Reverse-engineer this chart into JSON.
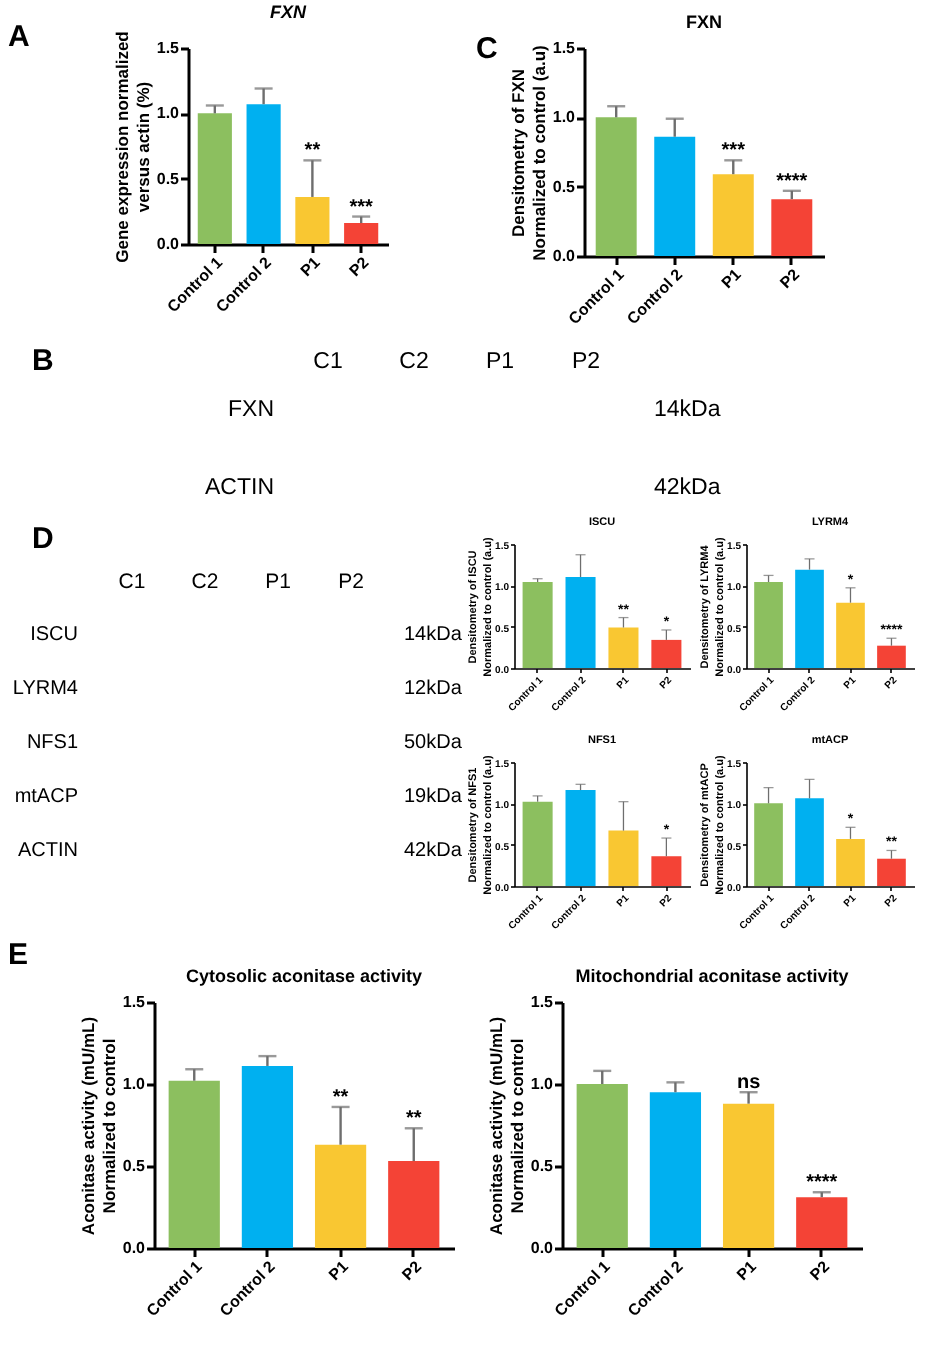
{
  "chart_data": [
    {
      "type": "bar",
      "title": "FXN",
      "ylabel": "Gene expression normalized\nversus actin (%)",
      "categories": [
        "Control 1",
        "Control 2",
        "P1",
        "P2"
      ],
      "values": [
        1.0,
        1.07,
        0.36,
        0.16
      ],
      "colors": [
        "#8cbf5f",
        "#00b0f0",
        "#f9c732",
        "#f44336"
      ],
      "errors": [
        [
          1.0,
          1.06
        ],
        [
          1.07,
          1.19
        ],
        [
          0.36,
          0.64
        ],
        [
          0.16,
          0.21
        ]
      ],
      "ylim": [
        0,
        1.5
      ],
      "yticks": [
        {
          "value": 0,
          "label": "0.0"
        },
        {
          "value": 0.5,
          "label": "0.5"
        },
        {
          "value": 1,
          "label": "1.0"
        },
        {
          "value": 1.5,
          "label": "1.5"
        }
      ],
      "annotations": [
        "A",
        {
          "text": "**",
          "x": "P1",
          "y": 0.64
        },
        {
          "text": "***",
          "x": "P2",
          "y": 0.21
        }
      ]
    },
    {
      "type": "bar",
      "title": "FXN",
      "ylabel": "Densitometry of FXN\nNormalized to control (a.u)",
      "categories": [
        "Control 1",
        "Control 2",
        "P1",
        "P2"
      ],
      "values": [
        1.0,
        0.86,
        0.59,
        0.41
      ],
      "colors": [
        "#8cbf5f",
        "#00b0f0",
        "#f9c732",
        "#f44336"
      ],
      "errors": [
        [
          1.0,
          1.08
        ],
        [
          0.86,
          0.99
        ],
        [
          0.59,
          0.69
        ],
        [
          0.41,
          0.47
        ]
      ],
      "ylim": [
        0,
        1.5
      ],
      "yticks": [
        {
          "value": 0,
          "label": "0.0"
        },
        {
          "value": 0.5,
          "label": "0.5"
        },
        {
          "value": 1,
          "label": "1.0"
        },
        {
          "value": 1.5,
          "label": "1.5"
        }
      ],
      "annotations": [
        "C",
        {
          "text": "***",
          "x": "P1",
          "y": 0.69
        },
        {
          "text": "****",
          "x": "P2",
          "y": 0.47
        }
      ]
    },
    {
      "type": "other",
      "annotations": [
        "B"
      ],
      "categories": [
        "C1",
        "C2",
        "P1",
        "P2"
      ],
      "y_categories": [
        "FXN",
        "ACTIN"
      ],
      "y2_categories": [
        "14kDa",
        "42kDa"
      ]
    },
    {
      "type": "other",
      "annotations": [
        "D"
      ],
      "categories": [
        "C1",
        "C2",
        "P1",
        "P2"
      ],
      "y_categories": [
        "ISCU",
        "LYRM4",
        "NFS1",
        "mtACP",
        "ACTIN"
      ],
      "y2_categories": [
        "14kDa",
        "12kDa",
        "50kDa",
        "19kDa",
        "42kDa"
      ]
    },
    {
      "type": "bar",
      "title": "ISCU",
      "ylabel": "Densitometry of ISCU\nNormalized to control (a.u)",
      "categories": [
        "Control 1",
        "Control 2",
        "P1",
        "P2"
      ],
      "values": [
        1.04,
        1.1,
        0.49,
        0.34
      ],
      "colors": [
        "#8cbf5f",
        "#00b0f0",
        "#f9c732",
        "#f44336"
      ],
      "errors": [
        [
          1.04,
          1.08
        ],
        [
          1.1,
          1.37
        ],
        [
          0.49,
          0.61
        ],
        [
          0.34,
          0.46
        ]
      ],
      "ylim": [
        0,
        1.5
      ],
      "yticks": [
        {
          "value": 0,
          "label": "0.0"
        },
        {
          "value": 0.5,
          "label": "0.5"
        },
        {
          "value": 1,
          "label": "1.0"
        },
        {
          "value": 1.5,
          "label": "1.5"
        }
      ],
      "annotations": [
        {
          "text": "**",
          "x": "P1",
          "y": 0.61
        },
        {
          "text": "*",
          "x": "P2",
          "y": 0.46
        }
      ]
    },
    {
      "type": "bar",
      "title": "LYRM4",
      "ylabel": "Densitometry of LYRM4\nNormalized to control (a.u)",
      "categories": [
        "Control 1",
        "Control 2",
        "P1",
        "P2"
      ],
      "values": [
        1.04,
        1.19,
        0.79,
        0.27
      ],
      "colors": [
        "#8cbf5f",
        "#00b0f0",
        "#f9c732",
        "#f44336"
      ],
      "errors": [
        [
          1.04,
          1.12
        ],
        [
          1.19,
          1.32
        ],
        [
          0.79,
          0.97
        ],
        [
          0.27,
          0.36
        ]
      ],
      "ylim": [
        0,
        1.5
      ],
      "yticks": [
        {
          "value": 0,
          "label": "0.0"
        },
        {
          "value": 0.5,
          "label": "0.5"
        },
        {
          "value": 1,
          "label": "1.0"
        },
        {
          "value": 1.5,
          "label": "1.5"
        }
      ],
      "annotations": [
        {
          "text": "*",
          "x": "P1",
          "y": 0.97
        },
        {
          "text": "****",
          "x": "P2",
          "y": 0.36
        }
      ]
    },
    {
      "type": "bar",
      "title": "NFS1",
      "ylabel": "Densitometry of NFS1\nNormalized to control (a.u)",
      "categories": [
        "Control 1",
        "Control 2",
        "P1",
        "P2"
      ],
      "values": [
        1.02,
        1.16,
        0.67,
        0.36
      ],
      "colors": [
        "#8cbf5f",
        "#00b0f0",
        "#f9c732",
        "#f44336"
      ],
      "errors": [
        [
          1.02,
          1.09
        ],
        [
          1.16,
          1.23
        ],
        [
          0.67,
          1.02
        ],
        [
          0.36,
          0.58
        ]
      ],
      "ylim": [
        0,
        1.5
      ],
      "yticks": [
        {
          "value": 0,
          "label": "0.0"
        },
        {
          "value": 0.5,
          "label": "0.5"
        },
        {
          "value": 1,
          "label": "1.0"
        },
        {
          "value": 1.5,
          "label": "1.5"
        }
      ],
      "annotations": [
        {
          "text": "*",
          "x": "P2",
          "y": 0.58
        }
      ]
    },
    {
      "type": "bar",
      "title": "mtACP",
      "ylabel": "Densitometry of mtACP\nNormalized to control (a.u)",
      "categories": [
        "Control 1",
        "Control 2",
        "P1",
        "P2"
      ],
      "values": [
        1.0,
        1.06,
        0.57,
        0.33
      ],
      "colors": [
        "#8cbf5f",
        "#00b0f0",
        "#f9c732",
        "#f44336"
      ],
      "errors": [
        [
          1.0,
          1.19
        ],
        [
          1.06,
          1.29
        ],
        [
          0.57,
          0.71
        ],
        [
          0.33,
          0.43
        ]
      ],
      "ylim": [
        0,
        1.5
      ],
      "yticks": [
        {
          "value": 0,
          "label": "0.0"
        },
        {
          "value": 0.5,
          "label": "0.5"
        },
        {
          "value": 1,
          "label": "1.0"
        },
        {
          "value": 1.5,
          "label": "1.5"
        }
      ],
      "annotations": [
        {
          "text": "*",
          "x": "P1",
          "y": 0.71
        },
        {
          "text": "**",
          "x": "P2",
          "y": 0.43
        }
      ]
    },
    {
      "type": "bar",
      "title": "Cytosolic aconitase activity",
      "ylabel": "Aconitase activity (mU/mL)\nNormalized to control",
      "categories": [
        "Control 1",
        "Control 2",
        "P1",
        "P2"
      ],
      "values": [
        1.02,
        1.11,
        0.63,
        0.53
      ],
      "colors": [
        "#8cbf5f",
        "#00b0f0",
        "#f9c732",
        "#f44336"
      ],
      "errors": [
        [
          1.02,
          1.09
        ],
        [
          1.11,
          1.17
        ],
        [
          0.63,
          0.86
        ],
        [
          0.53,
          0.73
        ]
      ],
      "ylim": [
        0,
        1.5
      ],
      "yticks": [
        {
          "value": 0,
          "label": "0.0"
        },
        {
          "value": 0.5,
          "label": "0.5"
        },
        {
          "value": 1,
          "label": "1.0"
        },
        {
          "value": 1.5,
          "label": "1.5"
        }
      ],
      "annotations": [
        "E",
        {
          "text": "**",
          "x": "P1",
          "y": 0.86
        },
        {
          "text": "**",
          "x": "P2",
          "y": 0.73
        }
      ]
    },
    {
      "type": "bar",
      "title": "Mitochondrial aconitase activity",
      "ylabel": "Aconitase activity (mU/mL)\nNormalized to control",
      "categories": [
        "Control 1",
        "Control 2",
        "P1",
        "P2"
      ],
      "values": [
        1.0,
        0.95,
        0.88,
        0.31
      ],
      "colors": [
        "#8cbf5f",
        "#00b0f0",
        "#f9c732",
        "#f44336"
      ],
      "errors": [
        [
          1.0,
          1.08
        ],
        [
          0.95,
          1.01
        ],
        [
          0.88,
          0.95
        ],
        [
          0.31,
          0.34
        ]
      ],
      "ylim": [
        0,
        1.5
      ],
      "yticks": [
        {
          "value": 0,
          "label": "0.0"
        },
        {
          "value": 0.5,
          "label": "0.5"
        },
        {
          "value": 1,
          "label": "1.0"
        },
        {
          "value": 1.5,
          "label": "1.5"
        }
      ],
      "annotations": [
        {
          "text": "ns",
          "x": "P1",
          "y": 0.95
        },
        {
          "text": "****",
          "x": "P2",
          "y": 0.34
        }
      ]
    }
  ]
}
